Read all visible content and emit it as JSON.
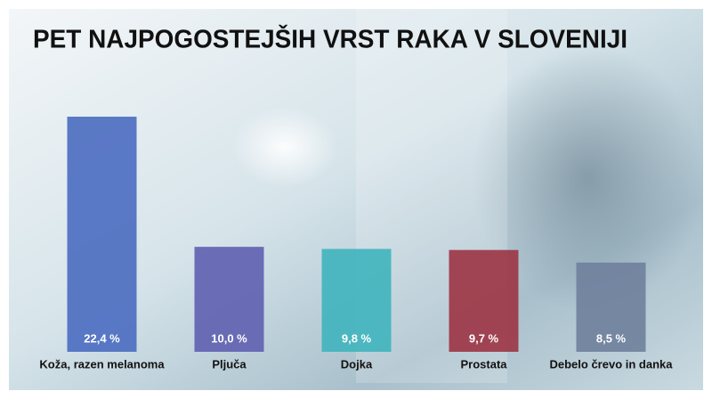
{
  "chart_data": {
    "type": "bar",
    "title": "PET NAJPOGOSTEJŠIH VRST RAKA V SLOVENIJI",
    "categories": [
      "Koža, razen melanoma",
      "Pljuča",
      "Dojka",
      "Prostata",
      "Debelo črevo in danka"
    ],
    "values": [
      22.4,
      10.0,
      9.8,
      9.7,
      8.5
    ],
    "value_labels": [
      "22,4 %",
      "10,0 %",
      "9,8 %",
      "9,7 %",
      "8,5 %"
    ],
    "colors": [
      "#4a6cc0",
      "#5f5fb0",
      "#3fb4bd",
      "#9c3444",
      "#6f7f9c"
    ]
  }
}
